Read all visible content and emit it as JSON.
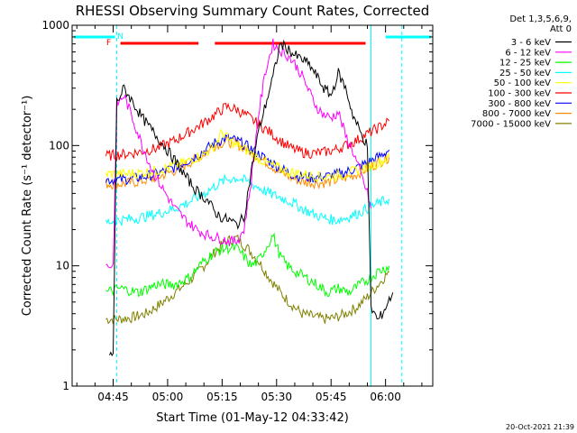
{
  "chart_data": {
    "type": "line",
    "title": "RHESSI Observing Summary Count Rates, Corrected",
    "ylabel": "Corrected Count Rate (s⁻¹ detector⁻¹)",
    "xlabel": "Start Time (01-May-12 04:33:42)",
    "footer": "20-Oct-2021 21:39",
    "y_scale": "log",
    "ylim": [
      1,
      1000
    ],
    "y_ticks": [
      {
        "value": 1,
        "label": "1"
      },
      {
        "value": 10,
        "label": "10"
      },
      {
        "value": 100,
        "label": "100"
      },
      {
        "value": 1000,
        "label": "1000"
      }
    ],
    "xlim": [
      "04:33:42",
      "06:13:00"
    ],
    "x_ticks": [
      "04:45",
      "05:00",
      "05:15",
      "05:30",
      "05:45",
      "06:00"
    ],
    "legend_header": [
      "Det 1,3,5,6,9,",
      "Att 0"
    ],
    "legend_position": "right",
    "series": [
      {
        "name": "3 - 6 keV",
        "color": "#000000",
        "x": [
          "04:44",
          "04:45",
          "04:46",
          "04:48",
          "04:50",
          "04:53",
          "04:56",
          "04:59",
          "05:02",
          "05:05",
          "05:08",
          "05:11",
          "05:13",
          "05:15",
          "05:17",
          "05:19",
          "05:21",
          "05:23",
          "05:25",
          "05:27",
          "05:29",
          "05:31",
          "05:33",
          "05:35",
          "05:37",
          "05:39",
          "05:41",
          "05:43",
          "05:45",
          "05:47",
          "05:49",
          "05:51",
          "05:53",
          "05:55",
          "05:56",
          "05:58",
          "06:00",
          "06:02"
        ],
        "y": [
          1.8,
          1.8,
          230,
          300,
          240,
          170,
          130,
          100,
          75,
          55,
          42,
          35,
          28,
          25,
          24,
          22,
          25,
          60,
          130,
          220,
          370,
          700,
          640,
          560,
          520,
          470,
          380,
          300,
          260,
          400,
          300,
          180,
          130,
          100,
          4.5,
          3.5,
          4.5,
          6
        ]
      },
      {
        "name": "6 - 12 keV",
        "color": "#ff00ff",
        "x": [
          "04:43",
          "04:45",
          "04:46",
          "04:48",
          "04:50",
          "04:53",
          "04:56",
          "04:59",
          "05:02",
          "05:05",
          "05:08",
          "05:11",
          "05:14",
          "05:17",
          "05:19",
          "05:21",
          "05:23",
          "05:25",
          "05:27",
          "05:29",
          "05:31",
          "05:33",
          "05:35",
          "05:37",
          "05:39",
          "05:41",
          "05:43",
          "05:45",
          "05:47",
          "05:49",
          "05:51",
          "05:53",
          "05:55",
          "05:56"
        ],
        "y": [
          10,
          10,
          220,
          260,
          180,
          100,
          60,
          42,
          30,
          24,
          20,
          18,
          17,
          16,
          16,
          20,
          50,
          180,
          420,
          700,
          620,
          560,
          480,
          380,
          280,
          210,
          180,
          170,
          190,
          120,
          90,
          60,
          40,
          30
        ]
      },
      {
        "name": "12 - 25 keV",
        "color": "#00ff00",
        "x": [
          "04:43",
          "04:47",
          "04:52",
          "04:57",
          "05:02",
          "05:06",
          "05:10",
          "05:13",
          "05:16",
          "05:19",
          "05:21",
          "05:23",
          "05:25",
          "05:27",
          "05:29",
          "05:31",
          "05:33",
          "05:35",
          "05:38",
          "05:41",
          "05:44",
          "05:47",
          "05:50",
          "05:53",
          "05:56",
          "05:58",
          "06:01"
        ],
        "y": [
          6,
          6.5,
          6,
          7,
          7,
          8,
          11,
          13,
          14,
          14,
          12,
          10,
          11,
          14,
          18,
          12,
          10,
          9,
          8,
          7,
          6,
          6.5,
          6,
          7,
          8,
          9,
          10
        ]
      },
      {
        "name": "25 - 50 keV",
        "color": "#00ffff",
        "x": [
          "04:43",
          "04:47",
          "04:52",
          "04:57",
          "05:02",
          "05:06",
          "05:10",
          "05:13",
          "05:16",
          "05:19",
          "05:22",
          "05:25",
          "05:28",
          "05:31",
          "05:34",
          "05:37",
          "05:40",
          "05:43",
          "05:46",
          "05:49",
          "05:52",
          "05:55",
          "05:58",
          "06:01"
        ],
        "y": [
          23,
          24,
          25,
          27,
          30,
          34,
          40,
          46,
          52,
          54,
          50,
          45,
          40,
          37,
          34,
          30,
          27,
          25,
          24,
          25,
          27,
          30,
          33,
          36
        ]
      },
      {
        "name": "50 - 100 keV",
        "color": "#ffff00",
        "x": [
          "04:43",
          "04:47",
          "04:52",
          "04:57",
          "05:02",
          "05:06",
          "05:10",
          "05:13",
          "05:15",
          "05:17",
          "05:19",
          "05:22",
          "05:25",
          "05:28",
          "05:31",
          "05:34",
          "05:37",
          "05:40",
          "05:43",
          "05:46",
          "05:49",
          "05:52",
          "05:55",
          "05:58",
          "06:01"
        ],
        "y": [
          58,
          58,
          59,
          62,
          68,
          75,
          85,
          100,
          130,
          110,
          100,
          90,
          78,
          70,
          64,
          60,
          58,
          56,
          55,
          56,
          58,
          62,
          66,
          72,
          80
        ]
      },
      {
        "name": "100 - 300 keV",
        "color": "#ff0000",
        "x": [
          "04:43",
          "04:47",
          "04:52",
          "04:57",
          "05:02",
          "05:06",
          "05:10",
          "05:13",
          "05:16",
          "05:19",
          "05:22",
          "05:25",
          "05:28",
          "05:31",
          "05:34",
          "05:37",
          "05:40",
          "05:43",
          "05:46",
          "05:49",
          "05:52",
          "05:55",
          "05:58",
          "06:01"
        ],
        "y": [
          82,
          84,
          88,
          95,
          110,
          130,
          155,
          180,
          210,
          200,
          175,
          150,
          130,
          110,
          95,
          88,
          86,
          88,
          92,
          100,
          110,
          125,
          140,
          160
        ]
      },
      {
        "name": "300 - 800 keV",
        "color": "#0000ff",
        "x": [
          "04:43",
          "04:47",
          "04:52",
          "04:57",
          "05:02",
          "05:06",
          "05:10",
          "05:13",
          "05:16",
          "05:19",
          "05:22",
          "05:25",
          "05:28",
          "05:31",
          "05:34",
          "05:37",
          "05:40",
          "05:43",
          "05:46",
          "05:49",
          "05:52",
          "05:55",
          "05:58",
          "06:01"
        ],
        "y": [
          52,
          52,
          54,
          58,
          66,
          76,
          90,
          105,
          115,
          110,
          98,
          85,
          74,
          65,
          58,
          55,
          54,
          55,
          57,
          60,
          65,
          72,
          80,
          92
        ]
      },
      {
        "name": "800 - 7000 keV",
        "color": "#ff8c00",
        "x": [
          "04:43",
          "04:47",
          "04:52",
          "04:57",
          "05:02",
          "05:06",
          "05:10",
          "05:13",
          "05:16",
          "05:19",
          "05:22",
          "05:25",
          "05:28",
          "05:31",
          "05:34",
          "05:37",
          "05:40",
          "05:43",
          "05:46",
          "05:49",
          "05:52",
          "05:55",
          "05:58",
          "06:01"
        ],
        "y": [
          48,
          48,
          50,
          54,
          62,
          72,
          85,
          100,
          108,
          104,
          92,
          80,
          70,
          60,
          54,
          50,
          49,
          49,
          51,
          54,
          58,
          64,
          72,
          80
        ]
      },
      {
        "name": "7000 - 15000 keV",
        "color": "#808000",
        "x": [
          "04:43",
          "04:46",
          "04:50",
          "04:54",
          "04:58",
          "05:02",
          "05:06",
          "05:10",
          "05:13",
          "05:16",
          "05:19",
          "05:22",
          "05:25",
          "05:28",
          "05:31",
          "05:34",
          "05:37",
          "05:40",
          "05:43",
          "05:46",
          "05:49",
          "05:52",
          "05:55",
          "05:58",
          "06:01"
        ],
        "y": [
          3.6,
          3.6,
          3.7,
          4,
          4.8,
          6,
          7.5,
          10,
          13,
          16,
          17,
          14,
          11,
          8,
          6,
          4.8,
          4,
          3.8,
          3.6,
          3.7,
          4,
          4.5,
          5.5,
          7,
          9
        ]
      }
    ],
    "annotations": [
      {
        "label": "F",
        "color": "#ff0000"
      },
      {
        "label": "N",
        "color": "#00ffff"
      }
    ],
    "flare_flag_color": "#ff0000",
    "saa_night_color": "#00ffff",
    "grid": false
  }
}
